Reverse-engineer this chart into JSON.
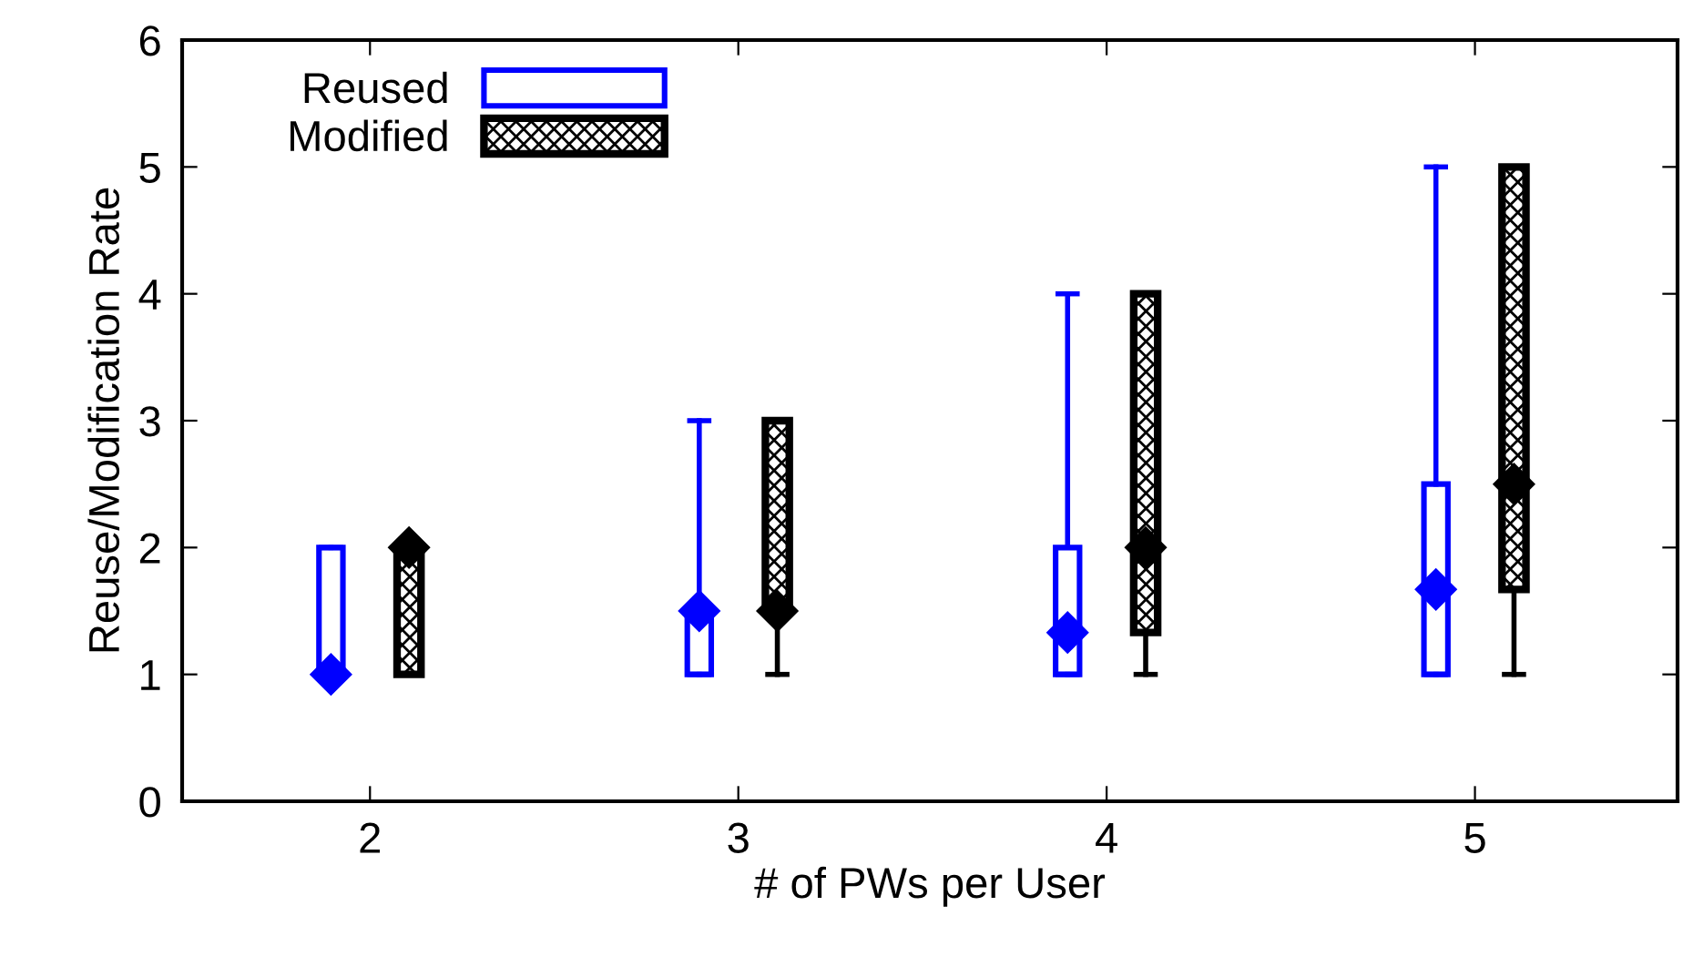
{
  "chart_data": {
    "type": "box",
    "xlabel": "# of PWs per User",
    "ylabel": "Reuse/Modification Rate",
    "categories": [
      "2",
      "3",
      "4",
      "5"
    ],
    "ylim": [
      0,
      6
    ],
    "yticks": [
      0,
      1,
      2,
      3,
      4,
      5,
      6
    ],
    "legend": "top left",
    "marker": "diamond",
    "grid": false,
    "series": [
      {
        "name": "Reused",
        "color": "#0000ff",
        "boxes": [
          {
            "low": 1,
            "q1": 1,
            "median": 1,
            "q3": 2,
            "high": 2,
            "mean": 1
          },
          {
            "low": 1,
            "q1": 1,
            "median": 1.5,
            "q3": 1.5,
            "high": 3,
            "mean": 1.5
          },
          {
            "low": 1,
            "q1": 1,
            "median": 1.33,
            "q3": 2,
            "high": 4,
            "mean": 1.33
          },
          {
            "low": 1,
            "q1": 1,
            "median": 1.67,
            "q3": 2.5,
            "high": 5,
            "mean": 1.67
          }
        ]
      },
      {
        "name": "Modified",
        "color": "#000000",
        "boxes": [
          {
            "low": 1,
            "q1": 1,
            "median": 2,
            "q3": 2,
            "high": 2,
            "mean": 2
          },
          {
            "low": 1,
            "q1": 1.5,
            "median": 1.5,
            "q3": 3,
            "high": 3,
            "mean": 1.5
          },
          {
            "low": 1,
            "q1": 1.33,
            "median": 2,
            "q3": 4,
            "high": 4,
            "mean": 2
          },
          {
            "low": 1,
            "q1": 1.67,
            "median": 2.5,
            "q3": 5,
            "high": 5,
            "mean": 2.5
          }
        ]
      }
    ]
  }
}
